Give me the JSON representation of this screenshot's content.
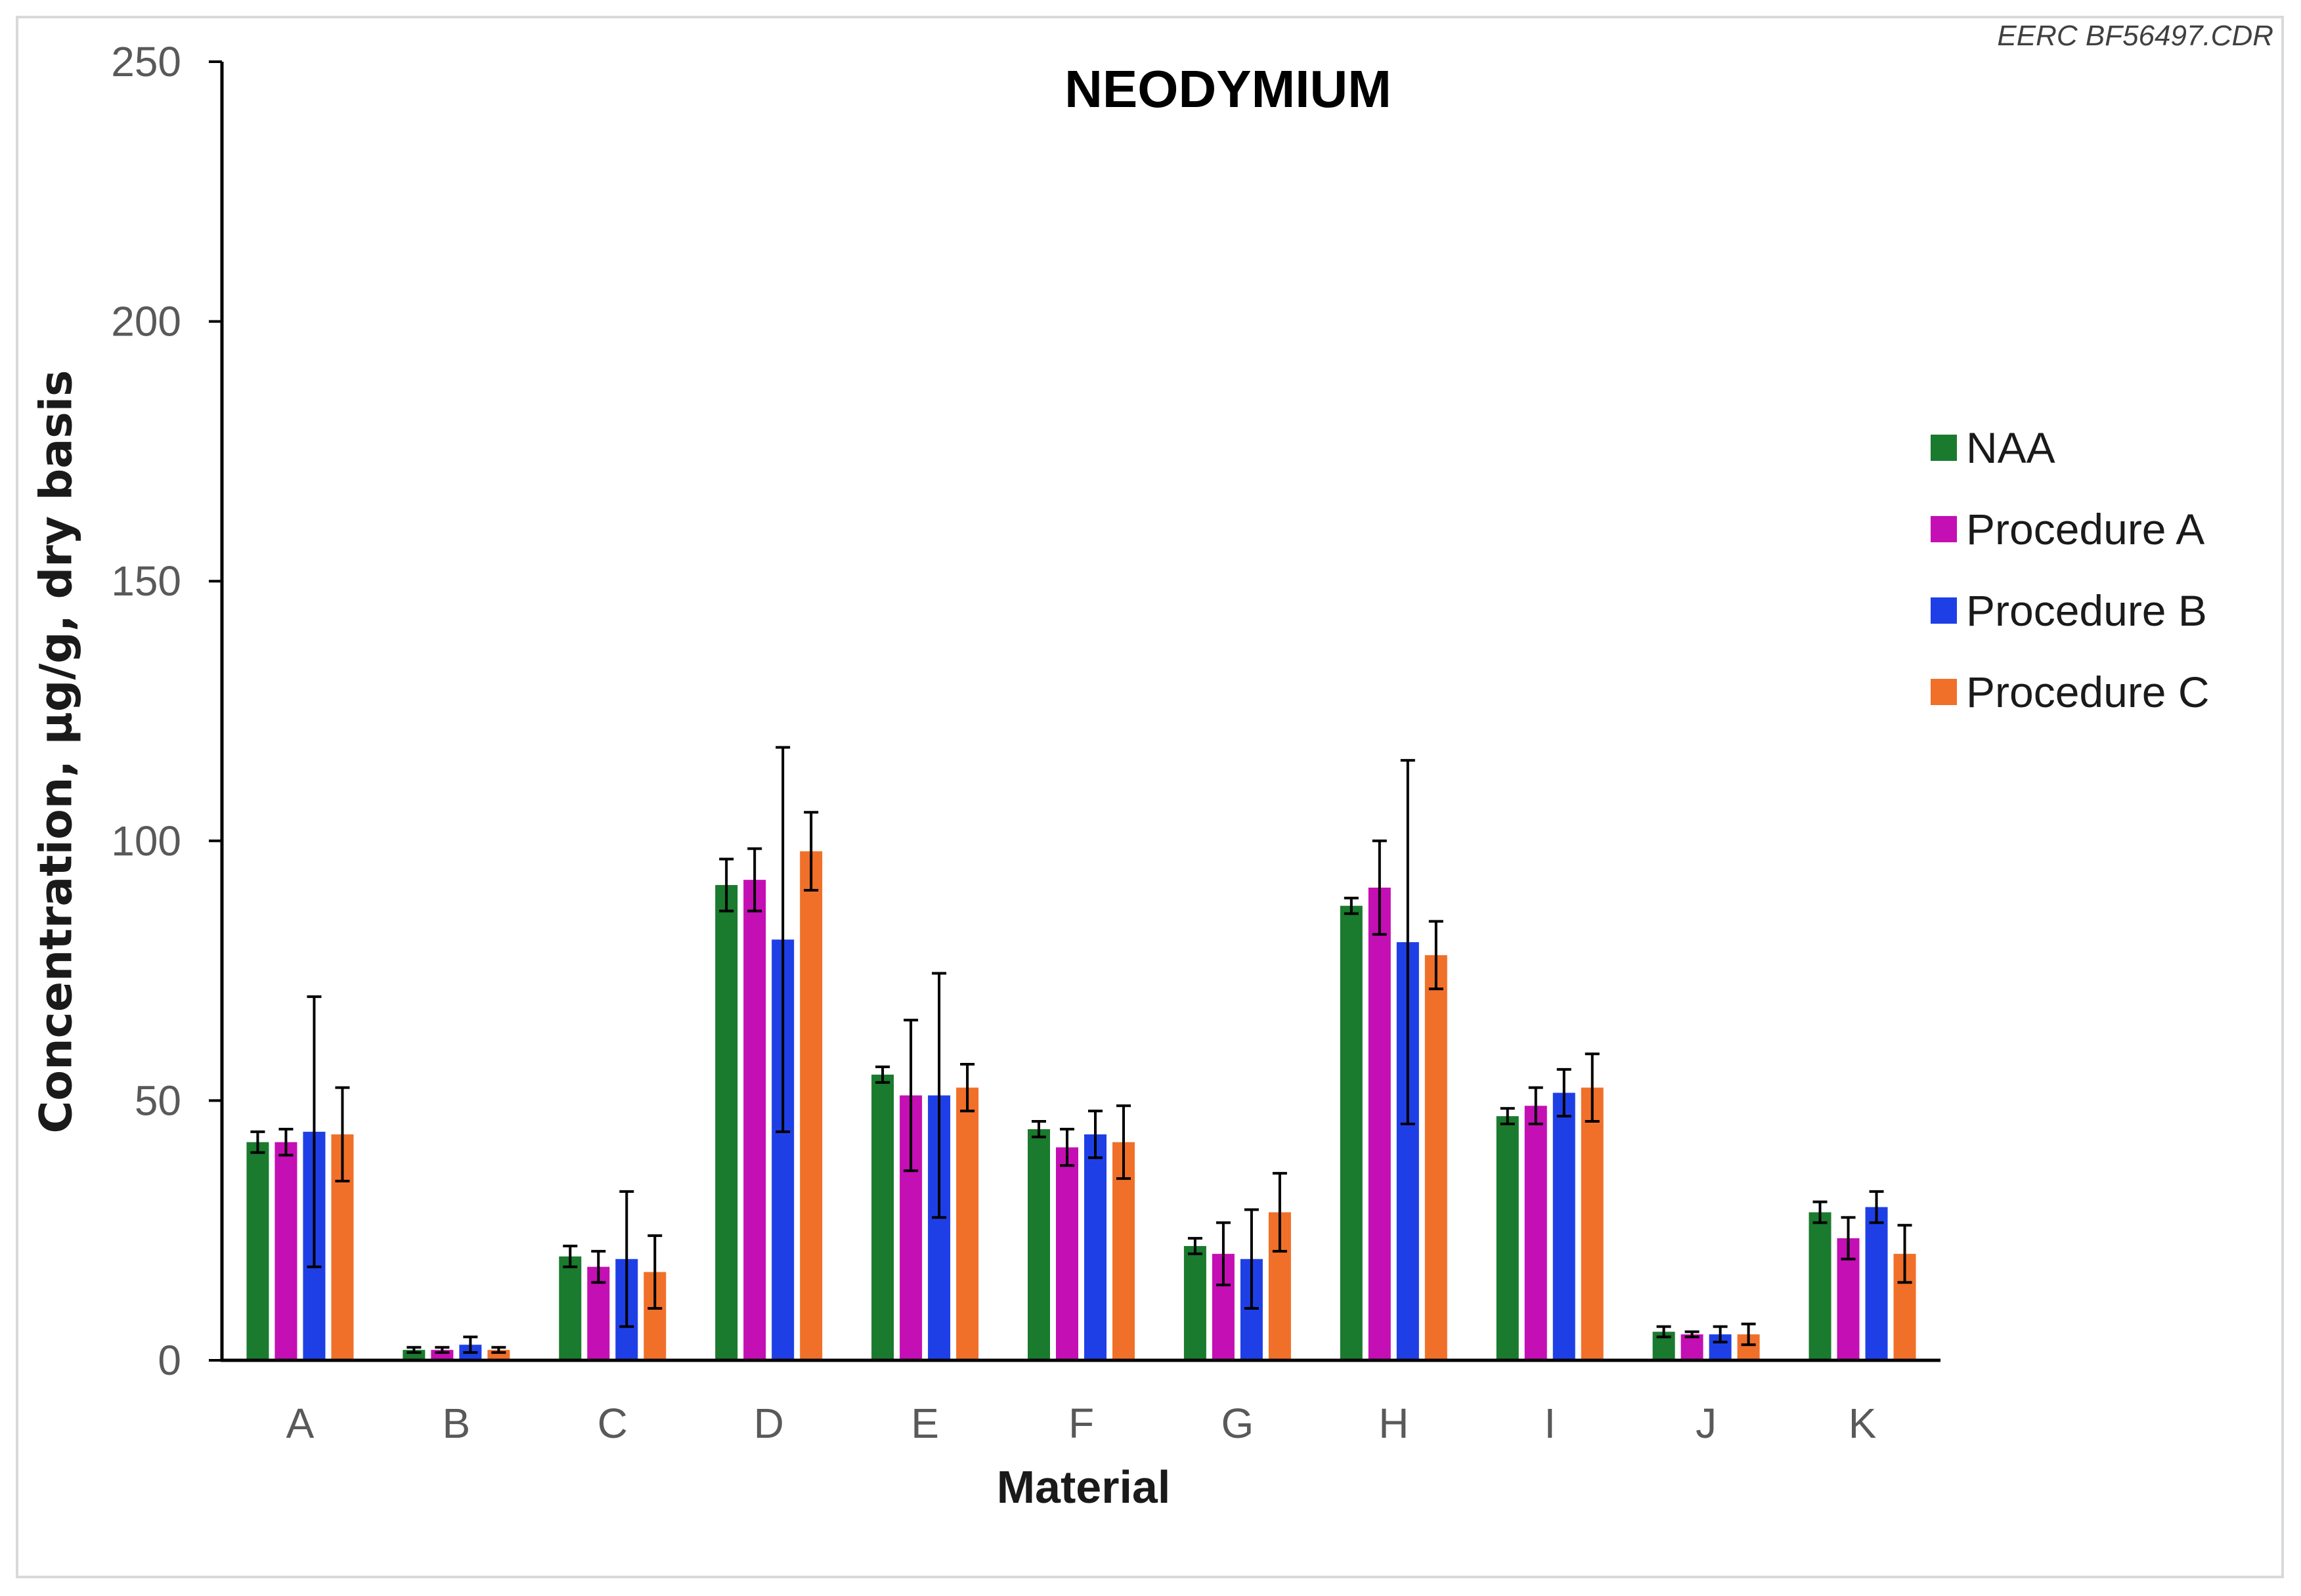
{
  "watermark": "EERC BF56497.CDR",
  "chart_data": {
    "type": "bar",
    "title": "NEODYMIUM",
    "xlabel": "Material",
    "ylabel": "Concentration, µg/g, dry basis",
    "ylim": [
      0,
      250
    ],
    "yticks": [
      0,
      50,
      100,
      150,
      200,
      250
    ],
    "grid": false,
    "legend_position": "right",
    "categories": [
      "A",
      "B",
      "C",
      "D",
      "E",
      "F",
      "G",
      "H",
      "I",
      "J",
      "K"
    ],
    "series": [
      {
        "name": "NAA",
        "color": "#1a7a2e",
        "values": [
          42,
          2,
          20,
          91.5,
          55,
          44.5,
          22,
          87.5,
          47,
          5.5,
          28.5
        ],
        "errors": [
          2,
          0.5,
          2,
          5,
          1.5,
          1.5,
          1.5,
          1.5,
          1.5,
          1,
          2
        ]
      },
      {
        "name": "Procedure A",
        "color": "#c40fb4",
        "values": [
          42,
          2,
          18,
          92.5,
          51,
          41,
          20.5,
          91,
          49,
          5,
          23.5
        ],
        "errors": [
          2.5,
          0.5,
          3,
          6,
          14.5,
          3.5,
          6,
          9,
          3.5,
          0.5,
          4
        ]
      },
      {
        "name": "Procedure B",
        "color": "#1f3fe6",
        "values": [
          44,
          3,
          19.5,
          81,
          51,
          43.5,
          19.5,
          80.5,
          51.5,
          5,
          29.5
        ],
        "errors": [
          26,
          1.5,
          13,
          37,
          23.5,
          4.5,
          9.5,
          35,
          4.5,
          1.5,
          3
        ]
      },
      {
        "name": "Procedure C",
        "color": "#f0702a",
        "values": [
          43.5,
          2,
          17,
          98,
          52.5,
          42,
          28.5,
          78,
          52.5,
          5,
          20.5
        ],
        "errors": [
          9,
          0.5,
          7,
          7.5,
          4.5,
          7,
          7.5,
          6.5,
          6.5,
          2,
          5.5
        ]
      }
    ]
  }
}
